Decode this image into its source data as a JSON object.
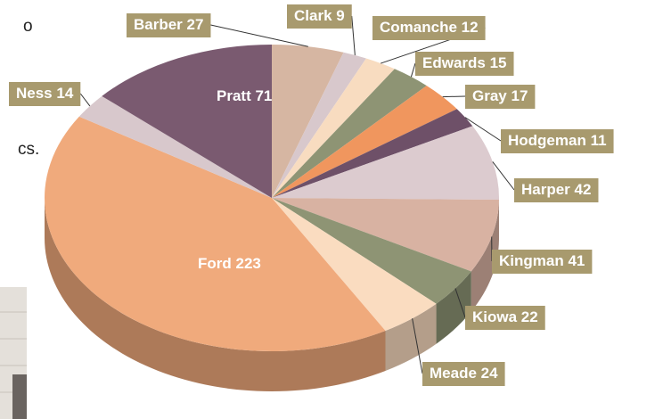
{
  "fragments": [
    "o",
    "cs."
  ],
  "chart_data": {
    "type": "pie",
    "categories": [
      "Barber",
      "Clark",
      "Comanche",
      "Edwards",
      "Gray",
      "Hodgeman",
      "Harper",
      "Kingman",
      "Kiowa",
      "Meade",
      "Ford",
      "Ness",
      "Pratt"
    ],
    "values": [
      27,
      9,
      12,
      15,
      17,
      11,
      42,
      41,
      22,
      24,
      223,
      14,
      71
    ],
    "colors": [
      "#d6b6a2",
      "#d8c8cc",
      "#f8dcc0",
      "#8e9474",
      "#f0965e",
      "#6e5068",
      "#dccbcf",
      "#d8b2a2",
      "#8e9474",
      "#fadcc0",
      "#f0aa7c",
      "#d8c8cc",
      "#7a5a70"
    ]
  }
}
